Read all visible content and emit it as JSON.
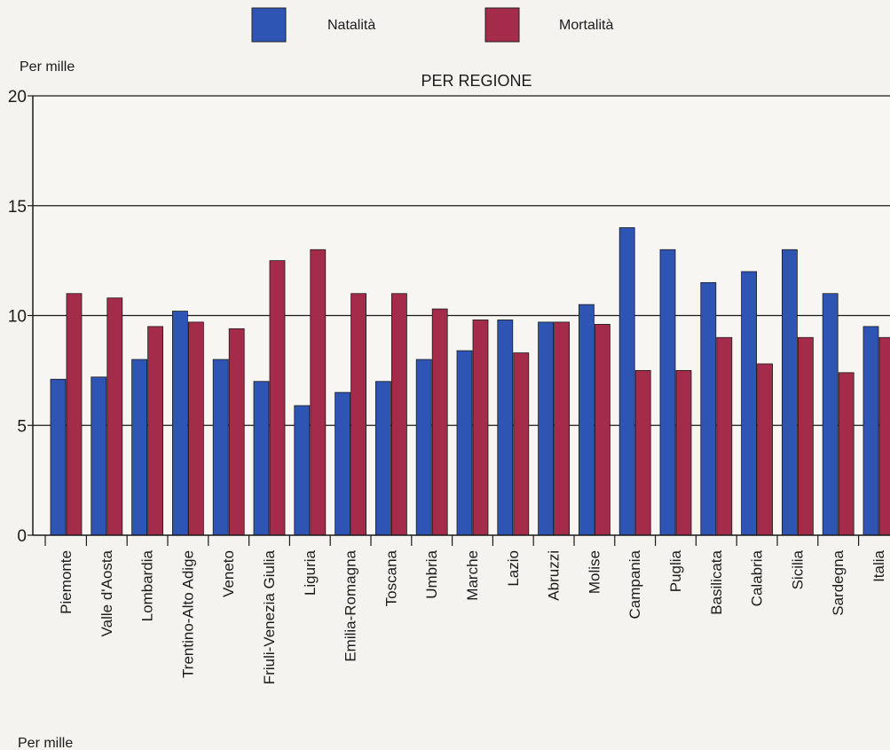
{
  "chart_data": {
    "type": "bar",
    "title": "PER REGIONE",
    "ylabel": "Per mille",
    "footer_label": "Per mille",
    "ylim": [
      0,
      20
    ],
    "yticks": [
      0,
      5,
      10,
      15,
      20
    ],
    "grid": true,
    "legend_position": "top-center",
    "categories": [
      "Piemonte",
      "Valle d'Aosta",
      "Lombardia",
      "Trentino-Alto Adige",
      "Veneto",
      "Friuli-Venezia Giulia",
      "Liguria",
      "Emilia-Romagna",
      "Toscana",
      "Umbria",
      "Marche",
      "Lazio",
      "Abruzzi",
      "Molise",
      "Campania",
      "Puglia",
      "Basilicata",
      "Calabria",
      "Sicilia",
      "Sardegna",
      "Italia"
    ],
    "series": [
      {
        "name": "Natalità",
        "color": "#2f55b4",
        "values": [
          7.1,
          7.2,
          8.0,
          10.2,
          8.0,
          7.0,
          5.9,
          6.5,
          7.0,
          8.0,
          8.4,
          9.8,
          9.7,
          10.5,
          14.0,
          13.0,
          11.5,
          12.0,
          13.0,
          11.0,
          9.5
        ]
      },
      {
        "name": "Mortalità",
        "color": "#a52b4a",
        "values": [
          11.0,
          10.8,
          9.5,
          9.7,
          9.4,
          12.5,
          13.0,
          11.0,
          11.0,
          10.3,
          9.8,
          8.3,
          9.7,
          9.6,
          7.5,
          7.5,
          9.0,
          7.8,
          9.0,
          7.4,
          9.0
        ]
      }
    ]
  }
}
